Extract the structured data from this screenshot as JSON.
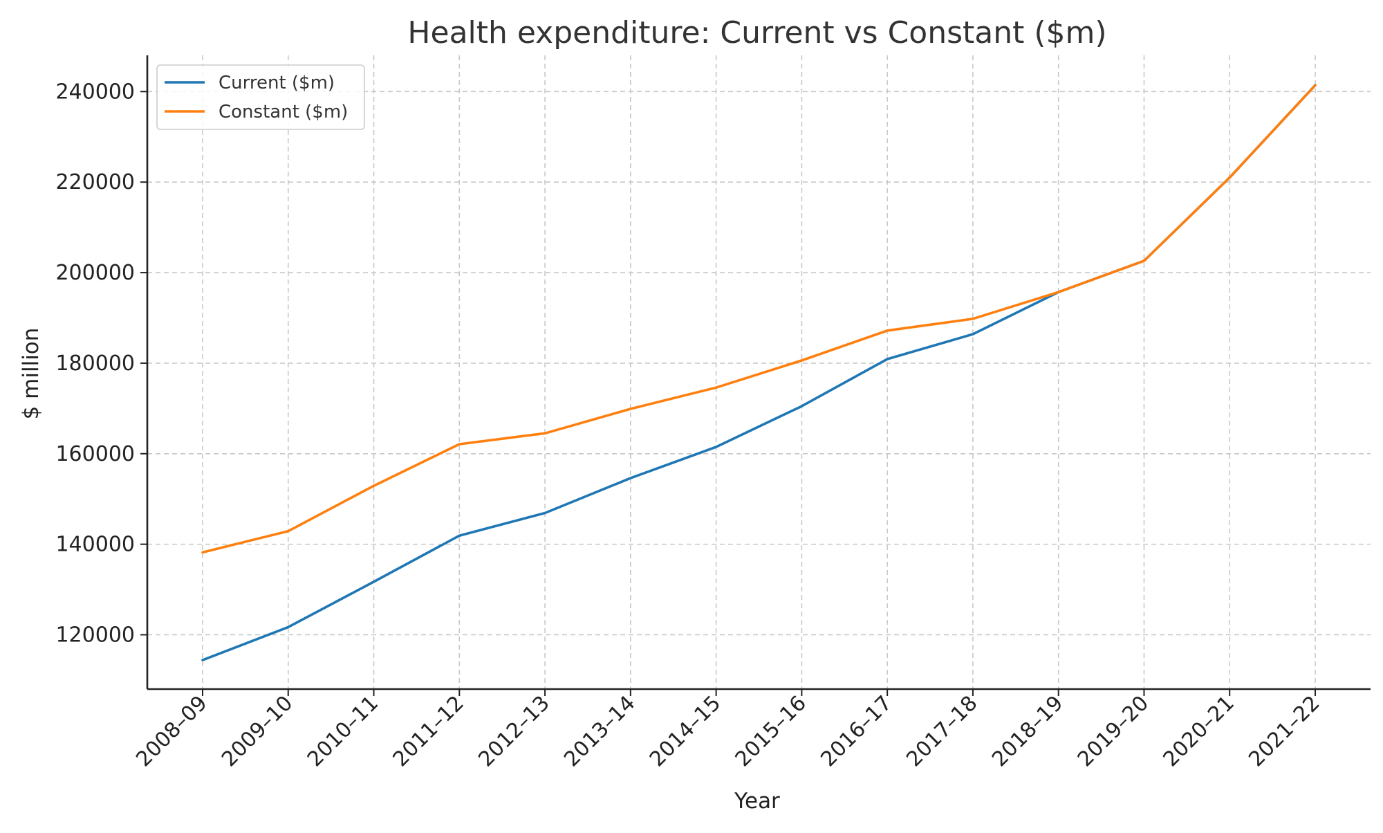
{
  "chart_data": {
    "type": "line",
    "title": "Health expenditure: Current vs Constant ($m)",
    "xlabel": "Year",
    "ylabel": "$ million",
    "categories": [
      "2008–09",
      "2009–10",
      "2010–11",
      "2011–12",
      "2012–13",
      "2013–14",
      "2014–15",
      "2015–16",
      "2016–17",
      "2017–18",
      "2018–19",
      "2019–20",
      "2020–21",
      "2021–22"
    ],
    "yticks": [
      120000,
      140000,
      160000,
      180000,
      200000,
      220000,
      240000
    ],
    "ylim": [
      108000,
      248000
    ],
    "grid": true,
    "legend_position": "top-left",
    "series": [
      {
        "name": "Current ($m)",
        "color": "#1f77b4",
        "values": [
          114400,
          121700,
          131700,
          141900,
          146900,
          154600,
          161500,
          170500,
          180900,
          186400,
          195700,
          202600,
          221000,
          241400
        ]
      },
      {
        "name": "Constant ($m)",
        "color": "#ff7f0e",
        "values": [
          138200,
          142900,
          152900,
          162100,
          164500,
          169900,
          174600,
          180600,
          187200,
          189800,
          195700,
          202600,
          221000,
          241400
        ]
      }
    ]
  }
}
